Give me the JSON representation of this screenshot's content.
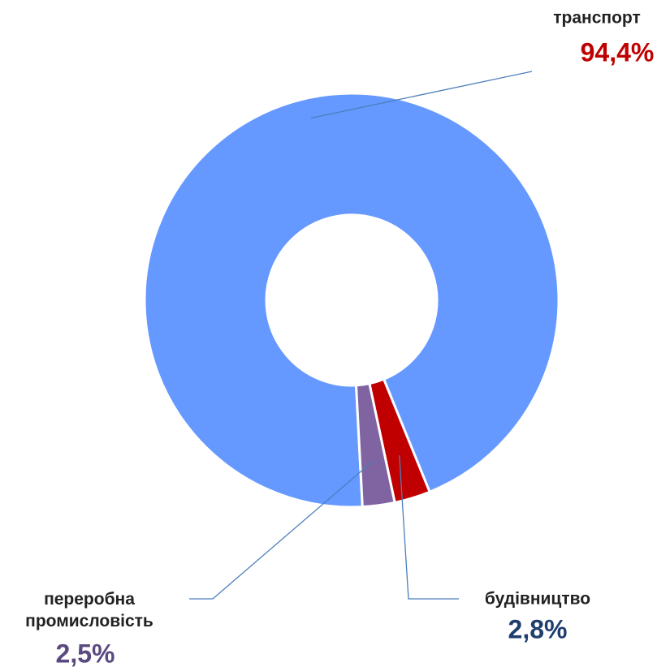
{
  "chart_data": {
    "type": "donut",
    "categories": [
      "транспорт",
      "будівництво",
      "переробна промисловість"
    ],
    "values": [
      94.4,
      2.8,
      2.5
    ],
    "value_labels": [
      "94,4%",
      "2,8%",
      "2,5%"
    ],
    "colors": [
      "#6699ff",
      "#c00000",
      "#8064a2"
    ],
    "value_label_colors": [
      "#c00000",
      "#1f3d6e",
      "#5b4a7f"
    ]
  }
}
